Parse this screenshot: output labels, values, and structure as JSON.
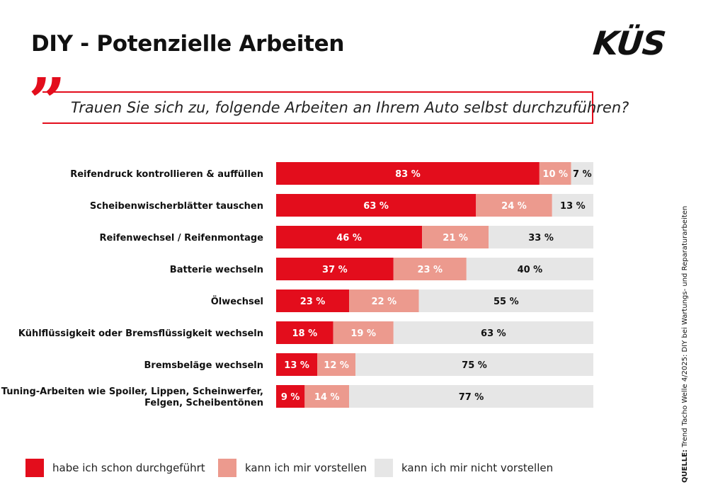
{
  "title": "DIY - Potenzielle Arbeiten",
  "logo": "KÜS",
  "question": "Trauen Sie sich zu, folgende Arbeiten an Ihrem Auto selbst durchzuführen?",
  "source_label": "QUELLE:",
  "source_text": "Trend Tacho Welle 4/2025: DIY bei Wartungs- und Reparaturarbeiten",
  "colors": {
    "done": "#e30d1c",
    "imagine": "#ec9a8e",
    "not": "#e6e6e6"
  },
  "legend": [
    {
      "label": "habe ich schon durchgeführt",
      "color": "#e30d1c"
    },
    {
      "label": "kann ich mir vorstellen",
      "color": "#ec9a8e"
    },
    {
      "label": "kann ich mir nicht vorstellen",
      "color": "#e6e6e6"
    }
  ],
  "chart_data": {
    "type": "bar",
    "orientation": "horizontal",
    "stacked": true,
    "unit": "%",
    "xlim": [
      0,
      100
    ],
    "grid": false,
    "legend_position": "bottom",
    "categories": [
      [
        "Reifendruck kontrollieren & auffüllen"
      ],
      [
        "Scheibenwischerblätter tauschen"
      ],
      [
        "Reifenwechsel / Reifenmontage"
      ],
      [
        "Batterie wechseln"
      ],
      [
        "Ölwechsel"
      ],
      [
        "Kühlflüssigkeit oder Bremsflüssigkeit wechseln"
      ],
      [
        "Bremsbeläge wechseln"
      ],
      [
        "Tuning-Arbeiten wie Spoiler, Lippen, Scheinwerfer,",
        "Felgen, Scheibentönen"
      ]
    ],
    "series": [
      {
        "name": "habe ich schon durchgeführt",
        "values": [
          83,
          63,
          46,
          37,
          23,
          18,
          13,
          9
        ]
      },
      {
        "name": "kann ich mir vorstellen",
        "values": [
          10,
          24,
          21,
          23,
          22,
          19,
          12,
          14
        ]
      },
      {
        "name": "kann ich mir nicht vorstellen",
        "values": [
          7,
          13,
          33,
          40,
          55,
          63,
          75,
          77
        ]
      }
    ]
  }
}
